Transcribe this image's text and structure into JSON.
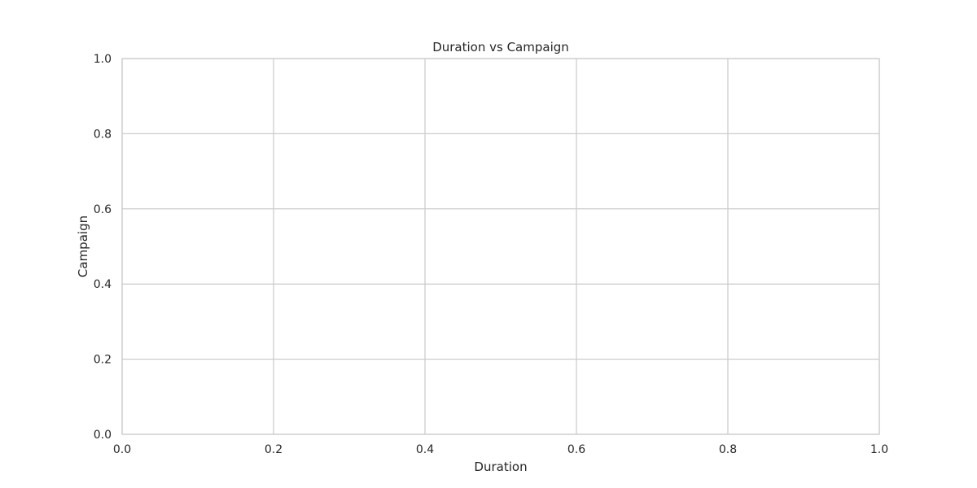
{
  "chart_data": {
    "type": "scatter",
    "title": "Duration vs Campaign",
    "xlabel": "Duration",
    "ylabel": "Campaign",
    "xlim": [
      0.0,
      1.0
    ],
    "ylim": [
      0.0,
      1.0
    ],
    "x_ticks": [
      "0.0",
      "0.2",
      "0.4",
      "0.6",
      "0.8",
      "1.0"
    ],
    "y_ticks": [
      "0.0",
      "0.2",
      "0.4",
      "0.6",
      "0.8",
      "1.0"
    ],
    "series": [
      {
        "x": [],
        "y": []
      }
    ],
    "grid": true,
    "legend": "none",
    "colors": {
      "grid": "#cccccc",
      "frame": "#cccccc",
      "text": "#262626",
      "background": "#ffffff"
    }
  }
}
